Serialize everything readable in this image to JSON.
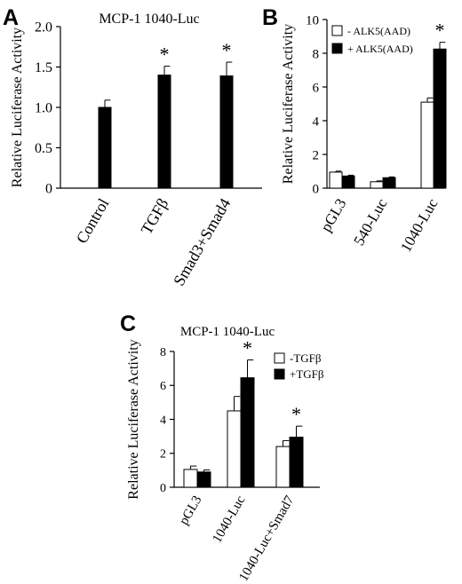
{
  "chart_data": [
    {
      "type": "bar",
      "panel": "A",
      "title": "MCP-1 1040-Luc",
      "ylabel": "Relative Luciferase Activity",
      "ylim": [
        0,
        2.0
      ],
      "yticks": [
        "0",
        "0.5",
        "1.0",
        "1.5",
        "2.0"
      ],
      "categories": [
        "Control",
        "TGFβ",
        "Smad3+Smad4"
      ],
      "series": [
        {
          "color": "#000000",
          "values": [
            1.0,
            1.4,
            1.39
          ],
          "errors": [
            0.09,
            0.11,
            0.17
          ],
          "significant": [
            false,
            true,
            true
          ]
        }
      ],
      "significance_marker": "*",
      "grid": false
    },
    {
      "type": "bar",
      "panel": "B",
      "title": "",
      "ylabel": "Relative Luciferase Activity",
      "ylim": [
        0,
        10
      ],
      "yticks": [
        "0",
        "2",
        "4",
        "6",
        "8",
        "10"
      ],
      "categories": [
        "pGL3",
        "540-Luc",
        "1040-Luc"
      ],
      "legend_position": "top-left",
      "series": [
        {
          "name": "- ALK5(AAD)",
          "color": "#ffffff",
          "values": [
            0.95,
            0.38,
            5.1
          ],
          "errors": [
            0.06,
            0.05,
            0.25
          ],
          "significant": [
            false,
            false,
            false
          ]
        },
        {
          "name": "+ ALK5(AAD)",
          "color": "#000000",
          "values": [
            0.72,
            0.62,
            8.25
          ],
          "errors": [
            0.05,
            0.05,
            0.4
          ],
          "significant": [
            false,
            false,
            true
          ]
        }
      ],
      "significance_marker": "*",
      "grid": false
    },
    {
      "type": "bar",
      "panel": "C",
      "title": "MCP-1 1040-Luc",
      "ylabel": "Relative Luciferase Activity",
      "ylim": [
        0,
        8
      ],
      "yticks": [
        "0",
        "2",
        "4",
        "6",
        "8"
      ],
      "categories": [
        "pGL3",
        "1040-Luc",
        "1040-Luc+Smad7"
      ],
      "legend_position": "top-right",
      "series": [
        {
          "name": "-TGFβ",
          "color": "#ffffff",
          "values": [
            1.05,
            4.5,
            2.4
          ],
          "errors": [
            0.2,
            0.85,
            0.35
          ],
          "significant": [
            false,
            false,
            false
          ]
        },
        {
          "name": "+TGFβ",
          "color": "#000000",
          "values": [
            0.9,
            6.45,
            2.95
          ],
          "errors": [
            0.12,
            1.05,
            0.65
          ],
          "significant": [
            false,
            true,
            true
          ]
        }
      ],
      "significance_marker": "*",
      "grid": false
    }
  ]
}
